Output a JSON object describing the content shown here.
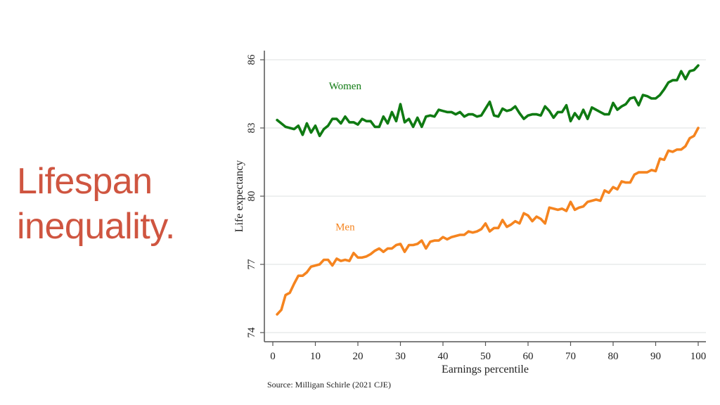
{
  "slide": {
    "title_lines": [
      "Lifespan",
      "inequality."
    ],
    "title_color": "#cf5540"
  },
  "source": "Source: Milligan Schirle (2021 CJE)",
  "chart_data": {
    "type": "line",
    "title": "",
    "xlabel": "Earnings percentile",
    "ylabel": "Life expectancy",
    "xlim": [
      0,
      100
    ],
    "ylim": [
      74,
      86
    ],
    "xticks": [
      0,
      10,
      20,
      30,
      40,
      50,
      60,
      70,
      80,
      90,
      100
    ],
    "yticks": [
      74,
      77,
      80,
      83,
      86
    ],
    "grid": true,
    "legend": "inline labels",
    "x": [
      1,
      2,
      3,
      4,
      5,
      6,
      7,
      8,
      9,
      10,
      11,
      12,
      13,
      14,
      15,
      16,
      17,
      18,
      19,
      20,
      21,
      22,
      23,
      24,
      25,
      26,
      27,
      28,
      29,
      30,
      31,
      32,
      33,
      34,
      35,
      36,
      37,
      38,
      39,
      40,
      41,
      42,
      43,
      44,
      45,
      46,
      47,
      48,
      49,
      50,
      51,
      52,
      53,
      54,
      55,
      56,
      57,
      58,
      59,
      60,
      61,
      62,
      63,
      64,
      65,
      66,
      67,
      68,
      69,
      70,
      71,
      72,
      73,
      74,
      75,
      76,
      77,
      78,
      79,
      80,
      81,
      82,
      83,
      84,
      85,
      86,
      87,
      88,
      89,
      90,
      91,
      92,
      93,
      94,
      95,
      96,
      97,
      98,
      99,
      100
    ],
    "series": [
      {
        "name": "Women",
        "color": "#0f7a12",
        "label_position": [
          17,
          84.7
        ],
        "values": [
          83.35,
          83.2,
          83.05,
          83.0,
          82.95,
          83.1,
          82.7,
          83.2,
          82.8,
          83.1,
          82.65,
          82.95,
          83.1,
          83.4,
          83.4,
          83.2,
          83.5,
          83.25,
          83.25,
          83.15,
          83.4,
          83.3,
          83.3,
          83.05,
          83.05,
          83.5,
          83.2,
          83.7,
          83.3,
          84.05,
          83.25,
          83.4,
          83.05,
          83.45,
          83.05,
          83.5,
          83.55,
          83.5,
          83.8,
          83.75,
          83.7,
          83.7,
          83.6,
          83.7,
          83.5,
          83.6,
          83.6,
          83.5,
          83.55,
          83.85,
          84.15,
          83.55,
          83.5,
          83.85,
          83.75,
          83.8,
          83.95,
          83.65,
          83.4,
          83.55,
          83.6,
          83.6,
          83.55,
          83.95,
          83.75,
          83.45,
          83.7,
          83.7,
          84.0,
          83.3,
          83.65,
          83.4,
          83.8,
          83.4,
          83.9,
          83.8,
          83.7,
          83.6,
          83.6,
          84.1,
          83.8,
          83.95,
          84.05,
          84.3,
          84.35,
          84.0,
          84.45,
          84.4,
          84.3,
          84.3,
          84.45,
          84.7,
          85.0,
          85.1,
          85.1,
          85.5,
          85.15,
          85.5,
          85.55,
          85.75
        ]
      },
      {
        "name": "Men",
        "color": "#f5841f",
        "label_position": [
          17,
          78.5
        ],
        "values": [
          74.8,
          75.0,
          75.65,
          75.75,
          76.15,
          76.5,
          76.5,
          76.65,
          76.9,
          76.95,
          77.0,
          77.2,
          77.2,
          76.95,
          77.25,
          77.15,
          77.2,
          77.15,
          77.5,
          77.3,
          77.3,
          77.35,
          77.45,
          77.6,
          77.7,
          77.55,
          77.7,
          77.7,
          77.85,
          77.9,
          77.55,
          77.85,
          77.85,
          77.9,
          78.05,
          77.7,
          78.0,
          78.05,
          78.05,
          78.2,
          78.1,
          78.2,
          78.25,
          78.3,
          78.3,
          78.45,
          78.4,
          78.45,
          78.55,
          78.8,
          78.45,
          78.6,
          78.6,
          78.95,
          78.65,
          78.75,
          78.9,
          78.8,
          79.25,
          79.15,
          78.9,
          79.1,
          79.0,
          78.8,
          79.5,
          79.45,
          79.4,
          79.45,
          79.35,
          79.75,
          79.4,
          79.5,
          79.55,
          79.75,
          79.8,
          79.85,
          79.8,
          80.25,
          80.15,
          80.4,
          80.3,
          80.65,
          80.6,
          80.6,
          80.95,
          81.05,
          81.05,
          81.05,
          81.15,
          81.1,
          81.65,
          81.6,
          82.0,
          81.95,
          82.05,
          82.05,
          82.2,
          82.55,
          82.65,
          83.0
        ]
      }
    ]
  }
}
